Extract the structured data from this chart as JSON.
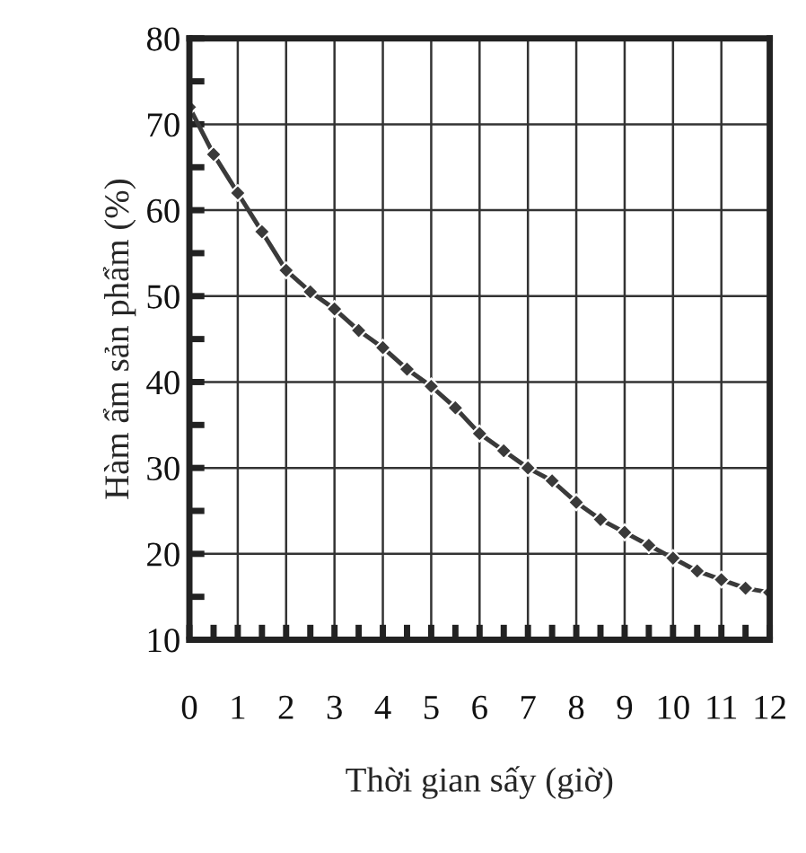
{
  "chart_data": {
    "type": "line",
    "xlabel": "Thời gian sấy (giờ)",
    "ylabel": "Hàm ẩm sản phẩm (%)",
    "x": [
      0,
      0.5,
      1,
      1.5,
      2,
      2.5,
      3,
      3.5,
      4,
      4.5,
      5,
      5.5,
      6,
      6.5,
      7,
      7.5,
      8,
      8.5,
      9,
      9.5,
      10,
      10.5,
      11,
      11.5,
      12
    ],
    "series": [
      {
        "color": "#3a3a3a",
        "values": [
          72,
          66.5,
          62,
          57.5,
          53,
          50.5,
          48.5,
          46,
          44,
          41.5,
          39.5,
          37,
          34,
          32,
          30,
          28.5,
          26,
          24,
          22.5,
          21,
          19.5,
          18,
          17,
          16,
          15.5
        ]
      }
    ],
    "xlim": [
      0,
      12
    ],
    "xticks": [
      0,
      1,
      2,
      3,
      4,
      5,
      6,
      7,
      8,
      9,
      10,
      11,
      12
    ],
    "ylim": [
      10,
      80
    ],
    "yticks": [
      10,
      20,
      30,
      40,
      50,
      60,
      70,
      80
    ],
    "grid": true,
    "marker": "diamond",
    "line_style": "solid"
  }
}
